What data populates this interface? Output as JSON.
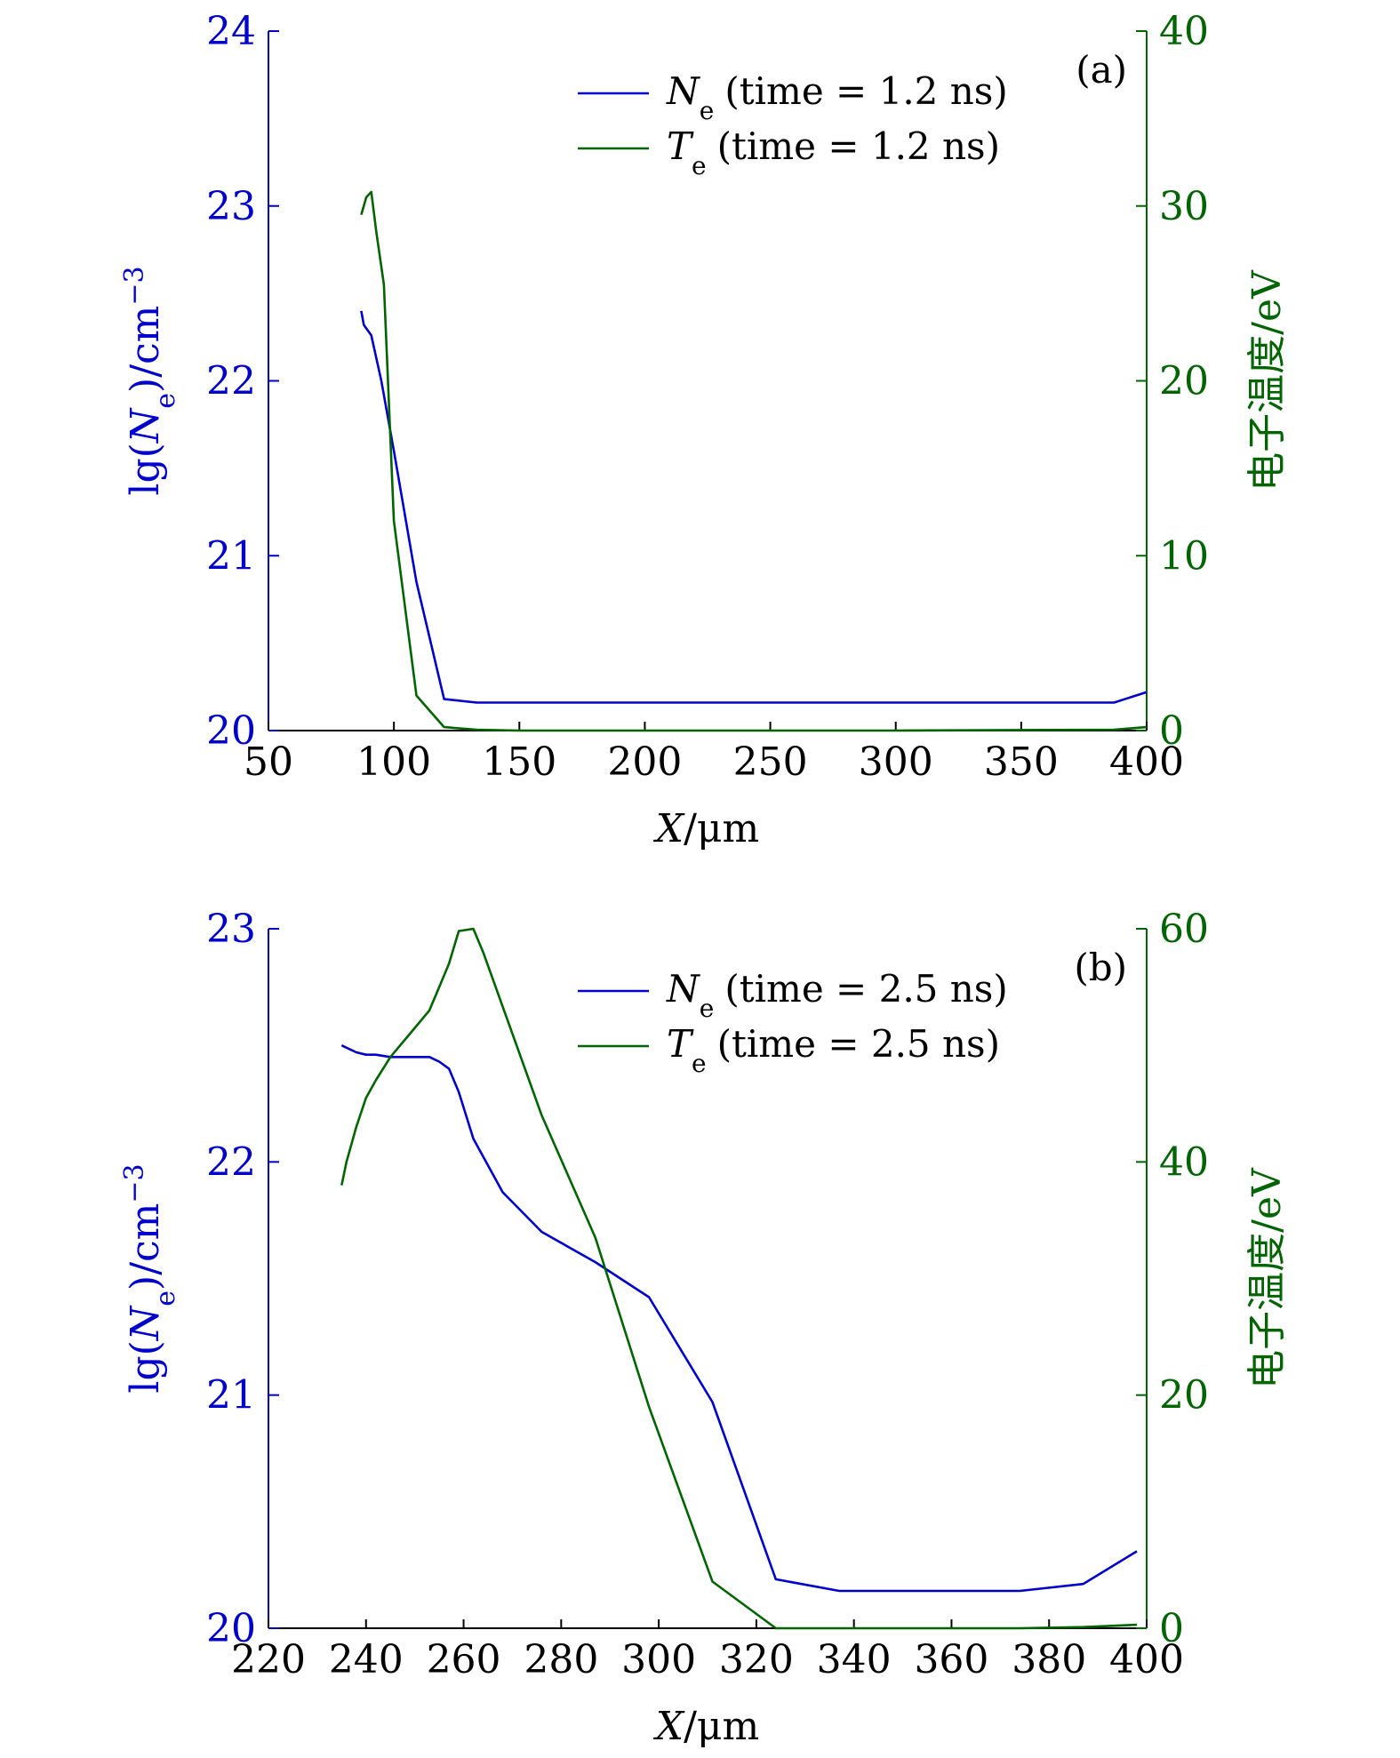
{
  "colors": {
    "ne": "#0000cc",
    "te": "#006400",
    "axis": "#000000"
  },
  "chart_data": [
    {
      "type": "line",
      "panel_label": "(a)",
      "xlabel_var": "X",
      "xlabel_unit": "/μm",
      "ylabel_left_parts": [
        "lg(",
        "N",
        "e",
        ")/cm",
        "−3"
      ],
      "ylabel_right": "电子温度/eV",
      "xlim": [
        50,
        400
      ],
      "xticks": [
        "50",
        "100",
        "150",
        "200",
        "250",
        "300",
        "350",
        "400"
      ],
      "ylim_left": [
        20,
        24
      ],
      "yticks_left": [
        "20",
        "21",
        "22",
        "23",
        "24"
      ],
      "ylim_right": [
        0,
        40
      ],
      "yticks_right": [
        "0",
        "10",
        "20",
        "30",
        "40"
      ],
      "legend_position": "top-right",
      "series": [
        {
          "name": "Ne (time = 1.2 ns)",
          "legend_symbol": "N",
          "legend_sub": "e",
          "legend_rest": "(time = 1.2 ns)",
          "axis": "left",
          "x": [
            87,
            88,
            89,
            91,
            95,
            100,
            109,
            120,
            133,
            150,
            200,
            300,
            387,
            400
          ],
          "y": [
            22.4,
            22.32,
            22.3,
            22.26,
            22.0,
            21.6,
            20.85,
            20.18,
            20.16,
            20.16,
            20.16,
            20.16,
            20.16,
            20.22
          ]
        },
        {
          "name": "Te (time = 1.2 ns)",
          "legend_symbol": "T",
          "legend_sub": "e",
          "legend_rest": "(time = 1.2 ns)",
          "axis": "right",
          "x": [
            87,
            89,
            91,
            93,
            96,
            100,
            109,
            120,
            133,
            150,
            200,
            300,
            387,
            400
          ],
          "y": [
            29.5,
            30.5,
            30.8,
            28.5,
            25.5,
            12,
            2,
            0.2,
            0.05,
            0,
            0,
            0,
            0.05,
            0.2
          ]
        }
      ]
    },
    {
      "type": "line",
      "panel_label": "(b)",
      "xlabel_var": "X",
      "xlabel_unit": "/μm",
      "ylabel_left_parts": [
        "lg(",
        "N",
        "e",
        ")/cm",
        "−3"
      ],
      "ylabel_right": "电子温度/eV",
      "xlim": [
        220,
        400
      ],
      "xticks": [
        "220",
        "240",
        "260",
        "280",
        "300",
        "320",
        "340",
        "360",
        "380",
        "400"
      ],
      "ylim_left": [
        20,
        23
      ],
      "yticks_left": [
        "20",
        "21",
        "22",
        "23"
      ],
      "ylim_right": [
        0,
        60
      ],
      "yticks_right": [
        "0",
        "20",
        "40",
        "60"
      ],
      "legend_position": "top-right",
      "series": [
        {
          "name": "Ne (time = 2.5 ns)",
          "legend_symbol": "N",
          "legend_sub": "e",
          "legend_rest": "(time = 2.5 ns)",
          "axis": "left",
          "x": [
            235,
            236,
            238,
            240,
            242,
            245,
            250,
            253,
            255,
            257,
            259,
            262,
            268,
            276,
            287,
            298,
            311,
            324,
            337,
            350,
            362,
            374,
            387,
            398
          ],
          "y": [
            22.5,
            22.49,
            22.47,
            22.46,
            22.46,
            22.45,
            22.45,
            22.45,
            22.43,
            22.4,
            22.3,
            22.1,
            21.87,
            21.7,
            21.57,
            21.42,
            20.97,
            20.21,
            20.16,
            20.16,
            20.16,
            20.16,
            20.19,
            20.33
          ]
        },
        {
          "name": "Te (time = 2.5 ns)",
          "legend_symbol": "T",
          "legend_sub": "e",
          "legend_rest": "(time = 2.5 ns)",
          "axis": "right",
          "x": [
            235,
            236,
            238,
            240,
            242,
            245,
            250,
            253,
            255,
            257,
            259,
            262,
            264,
            276,
            287,
            298,
            311,
            324,
            337,
            350,
            362,
            374,
            387,
            398
          ],
          "y": [
            38,
            40,
            43,
            45.5,
            47,
            49,
            51.5,
            53,
            55,
            57,
            59.8,
            60,
            58,
            44,
            33.5,
            19,
            4,
            0,
            0,
            0,
            0,
            0,
            0.1,
            0.3
          ]
        }
      ]
    }
  ]
}
